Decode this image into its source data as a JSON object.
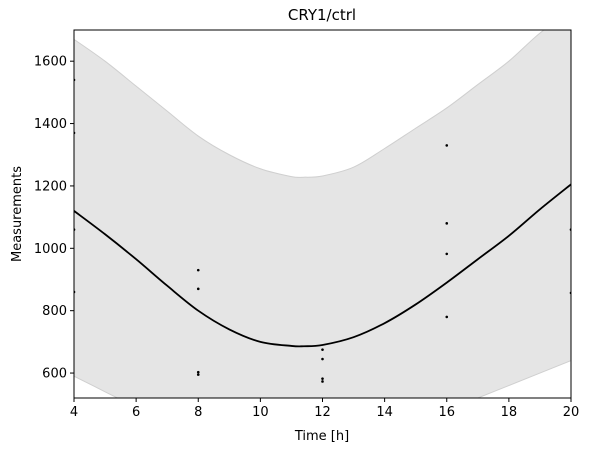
{
  "chart_data": {
    "type": "line",
    "title": "CRY1/ctrl",
    "xlabel": "Time [h]",
    "ylabel": "Measurements",
    "xlim": [
      4,
      20
    ],
    "ylim": [
      520,
      1700
    ],
    "xticks": [
      4,
      6,
      8,
      10,
      12,
      14,
      16,
      18,
      20
    ],
    "xtick_labels": [
      "4",
      "6",
      "8",
      "10",
      "12",
      "14",
      "16",
      "18",
      "20"
    ],
    "yticks": [
      600,
      800,
      1000,
      1200,
      1400,
      1600
    ],
    "ytick_labels": [
      "600",
      "800",
      "1000",
      "1200",
      "1400",
      "1600"
    ],
    "grid": false,
    "fit_line": {
      "x": [
        4,
        5,
        6,
        7,
        8,
        9,
        10,
        11,
        11.4,
        12,
        13,
        14,
        15,
        16,
        17,
        18,
        19,
        20
      ],
      "y": [
        1120,
        1045,
        965,
        880,
        800,
        740,
        700,
        687,
        686,
        690,
        715,
        760,
        820,
        890,
        965,
        1040,
        1125,
        1205
      ]
    },
    "confidence_band": {
      "x": [
        4,
        5,
        6,
        7,
        8,
        9,
        10,
        11,
        11.4,
        12,
        13,
        14,
        15,
        16,
        17,
        18,
        19,
        20
      ],
      "upper": [
        1670,
        1600,
        1520,
        1440,
        1360,
        1300,
        1255,
        1230,
        1228,
        1232,
        1260,
        1320,
        1385,
        1450,
        1525,
        1600,
        1690,
        1760
      ],
      "lower": [
        590,
        540,
        490,
        440,
        390,
        340,
        310,
        300,
        298,
        305,
        330,
        370,
        420,
        480,
        520,
        560,
        600,
        640
      ]
    },
    "points": [
      {
        "x": 4,
        "y": 1540
      },
      {
        "x": 4,
        "y": 1370
      },
      {
        "x": 4,
        "y": 1060
      },
      {
        "x": 4,
        "y": 860
      },
      {
        "x": 8,
        "y": 930
      },
      {
        "x": 8,
        "y": 870
      },
      {
        "x": 8,
        "y": 603
      },
      {
        "x": 8,
        "y": 595
      },
      {
        "x": 12,
        "y": 675
      },
      {
        "x": 12,
        "y": 645
      },
      {
        "x": 12,
        "y": 582
      },
      {
        "x": 12,
        "y": 573
      },
      {
        "x": 16,
        "y": 1330
      },
      {
        "x": 16,
        "y": 1080
      },
      {
        "x": 16,
        "y": 982
      },
      {
        "x": 16,
        "y": 780
      },
      {
        "x": 20,
        "y": 1060
      },
      {
        "x": 20,
        "y": 857
      }
    ],
    "colors": {
      "line": "#000000",
      "band_fill": "#e5e5e5",
      "band_edge": "#cfcfcf",
      "points": "#000000"
    }
  }
}
